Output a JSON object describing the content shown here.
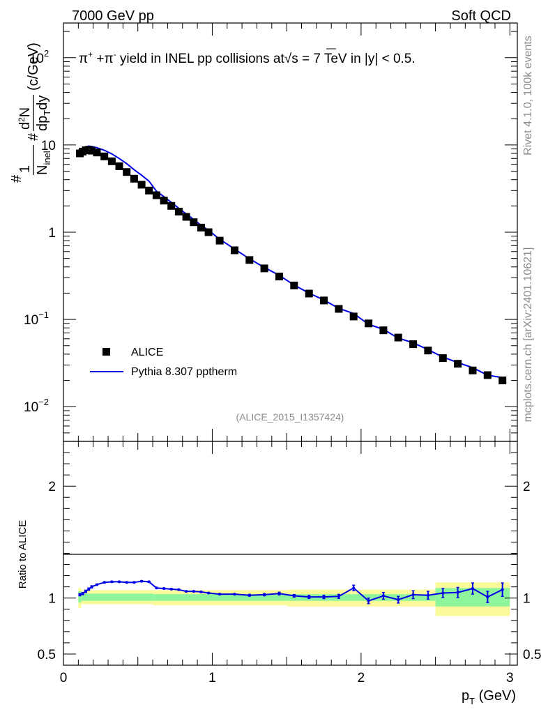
{
  "header": {
    "left": "7000 GeV pp",
    "right": "Soft QCD"
  },
  "side_labels": {
    "top": "Rivet 4.1.0,  100k events",
    "bottom": "mcplots.cern.ch [arXiv:2401.10621]"
  },
  "chart_data": [
    {
      "type": "scatter",
      "panel": "main",
      "title": "π⁺ +π⁻ yield in INEL pp collisions at √s = 7 TeV in |y| < 0.5.",
      "title_parts": {
        "pi_plus": "π",
        "sup_plus": "+",
        "plus_pi": " +π",
        "sup_minus": "-",
        "mid": " yield in INEL pp collisions at",
        "sqrt": "√",
        "s": "s",
        "tail": " =  7 TeV in |y| < 0.5."
      },
      "ylabel": "(1/N_inel) d²N/dp_T dy (c/GeV)",
      "ylabel_parts": {
        "hash1": "#",
        "one": "1",
        "n_inel": "N",
        "inel": "inel",
        "hash2": "#",
        "d2n": "d",
        "sup2": "2",
        "n": "N",
        "dpt": "dp",
        "sub_t": "T",
        "dy": "dy",
        "units": "(c/GeV)"
      },
      "yscale": "log",
      "ylim": [
        0.004,
        250
      ],
      "xlim": [
        0,
        3.05
      ],
      "y_ticks": [
        {
          "value": 100,
          "label": "10",
          "sup": "2"
        },
        {
          "value": 10,
          "label": "10",
          "sup": ""
        },
        {
          "value": 1,
          "label": "1",
          "sup": ""
        },
        {
          "value": 0.1,
          "label": "10",
          "sup": "−1"
        },
        {
          "value": 0.01,
          "label": "10",
          "sup": "−2"
        }
      ],
      "watermark": "(ALICE_2015_I1357424)",
      "legend": [
        {
          "name": "ALICE",
          "marker": "square",
          "color": "#000000"
        },
        {
          "name": "Pythia 8.307 pptherm",
          "marker": "line",
          "color": "#0000e6"
        }
      ],
      "series": [
        {
          "name": "ALICE",
          "x": [
            0.11,
            0.13,
            0.15,
            0.17,
            0.19,
            0.225,
            0.275,
            0.325,
            0.375,
            0.425,
            0.475,
            0.525,
            0.575,
            0.625,
            0.675,
            0.725,
            0.775,
            0.825,
            0.875,
            0.925,
            0.975,
            1.05,
            1.15,
            1.25,
            1.35,
            1.45,
            1.55,
            1.65,
            1.75,
            1.85,
            1.95,
            2.05,
            2.15,
            2.25,
            2.35,
            2.45,
            2.55,
            2.65,
            2.75,
            2.85,
            2.95
          ],
          "y": [
            8.0,
            8.4,
            8.7,
            8.8,
            8.6,
            8.2,
            7.4,
            6.5,
            5.7,
            4.9,
            4.1,
            3.5,
            3.0,
            2.65,
            2.3,
            2.0,
            1.72,
            1.5,
            1.3,
            1.13,
            1.0,
            0.8,
            0.62,
            0.48,
            0.385,
            0.31,
            0.245,
            0.198,
            0.165,
            0.132,
            0.108,
            0.09,
            0.075,
            0.062,
            0.052,
            0.044,
            0.036,
            0.031,
            0.026,
            0.023,
            0.02
          ]
        },
        {
          "name": "Pythia 8.307 pptherm",
          "x": [
            0.11,
            0.13,
            0.15,
            0.17,
            0.19,
            0.225,
            0.275,
            0.325,
            0.375,
            0.425,
            0.475,
            0.525,
            0.575,
            0.625,
            0.675,
            0.725,
            0.775,
            0.825,
            0.875,
            0.925,
            0.975,
            1.05,
            1.15,
            1.25,
            1.35,
            1.45,
            1.55,
            1.65,
            1.75,
            1.85,
            1.95,
            2.05,
            2.15,
            2.25,
            2.35,
            2.45,
            2.55,
            2.65,
            2.75,
            2.85,
            2.95
          ],
          "y": [
            8.5,
            9.0,
            9.5,
            9.7,
            9.6,
            9.3,
            8.7,
            7.9,
            7.0,
            6.1,
            5.2,
            4.5,
            3.85,
            2.95,
            2.55,
            2.2,
            1.88,
            1.62,
            1.4,
            1.2,
            1.05,
            0.83,
            0.64,
            0.495,
            0.395,
            0.32,
            0.248,
            0.2,
            0.167,
            0.134,
            0.117,
            0.088,
            0.077,
            0.061,
            0.054,
            0.045,
            0.037,
            0.032,
            0.028,
            0.023,
            0.0215
          ]
        }
      ]
    },
    {
      "type": "line",
      "panel": "ratio",
      "ylabel": "Ratio to ALICE",
      "xlabel": "p_T (GeV)",
      "xlabel_parts": {
        "p": "p",
        "sub": "T",
        "units": " (GeV)"
      },
      "ylim": [
        0.4,
        2.4
      ],
      "xlim": [
        0,
        3.05
      ],
      "y_ticks": [
        {
          "value": 0.5,
          "label": "0.5"
        },
        {
          "value": 1,
          "label": "1"
        },
        {
          "value": 2,
          "label": "2"
        }
      ],
      "x_ticks": [
        {
          "value": 0,
          "label": "0"
        },
        {
          "value": 1,
          "label": "1"
        },
        {
          "value": 2,
          "label": "2"
        },
        {
          "value": 3,
          "label": "3"
        }
      ],
      "bands": [
        {
          "name": "stat",
          "color": "#8ff59c",
          "segments": [
            [
              0.1,
              0.12,
              0.96,
              1.06
            ],
            [
              0.12,
              0.6,
              0.975,
              1.04
            ],
            [
              0.6,
              2.5,
              0.975,
              1.035
            ],
            [
              2.5,
              3.0,
              0.925,
              1.09
            ]
          ]
        },
        {
          "name": "syst",
          "color": "#fafa9a",
          "segments": [
            [
              0.1,
              0.12,
              0.91,
              1.09
            ],
            [
              0.12,
              0.6,
              0.945,
              1.07
            ],
            [
              0.6,
              1.5,
              0.935,
              1.07
            ],
            [
              1.5,
              2.5,
              0.925,
              1.075
            ],
            [
              2.5,
              3.0,
              0.84,
              1.14
            ]
          ]
        }
      ],
      "series": [
        {
          "name": "Pythia 8.307 pptherm / ALICE",
          "x": [
            0.11,
            0.13,
            0.15,
            0.17,
            0.19,
            0.225,
            0.275,
            0.325,
            0.375,
            0.425,
            0.475,
            0.525,
            0.575,
            0.625,
            0.675,
            0.725,
            0.775,
            0.825,
            0.875,
            0.925,
            0.975,
            1.05,
            1.15,
            1.25,
            1.35,
            1.45,
            1.55,
            1.65,
            1.75,
            1.85,
            1.95,
            2.05,
            2.15,
            2.25,
            2.35,
            2.45,
            2.55,
            2.65,
            2.75,
            2.85,
            2.95
          ],
          "y": [
            1.03,
            1.04,
            1.06,
            1.08,
            1.1,
            1.12,
            1.14,
            1.145,
            1.145,
            1.14,
            1.14,
            1.15,
            1.145,
            1.09,
            1.085,
            1.08,
            1.075,
            1.06,
            1.06,
            1.055,
            1.045,
            1.035,
            1.035,
            1.025,
            1.03,
            1.04,
            1.02,
            1.01,
            1.01,
            1.015,
            1.09,
            0.975,
            1.02,
            0.985,
            1.03,
            1.025,
            1.045,
            1.05,
            1.085,
            1.01,
            1.075
          ],
          "err": [
            0.01,
            0.01,
            0.01,
            0.01,
            0.01,
            0.005,
            0.005,
            0.005,
            0.005,
            0.005,
            0.005,
            0.005,
            0.005,
            0.005,
            0.005,
            0.005,
            0.005,
            0.005,
            0.005,
            0.005,
            0.005,
            0.005,
            0.005,
            0.008,
            0.01,
            0.012,
            0.012,
            0.014,
            0.015,
            0.018,
            0.025,
            0.025,
            0.03,
            0.03,
            0.035,
            0.035,
            0.04,
            0.045,
            0.05,
            0.05,
            0.06
          ]
        }
      ],
      "reference_line": 1
    }
  ]
}
